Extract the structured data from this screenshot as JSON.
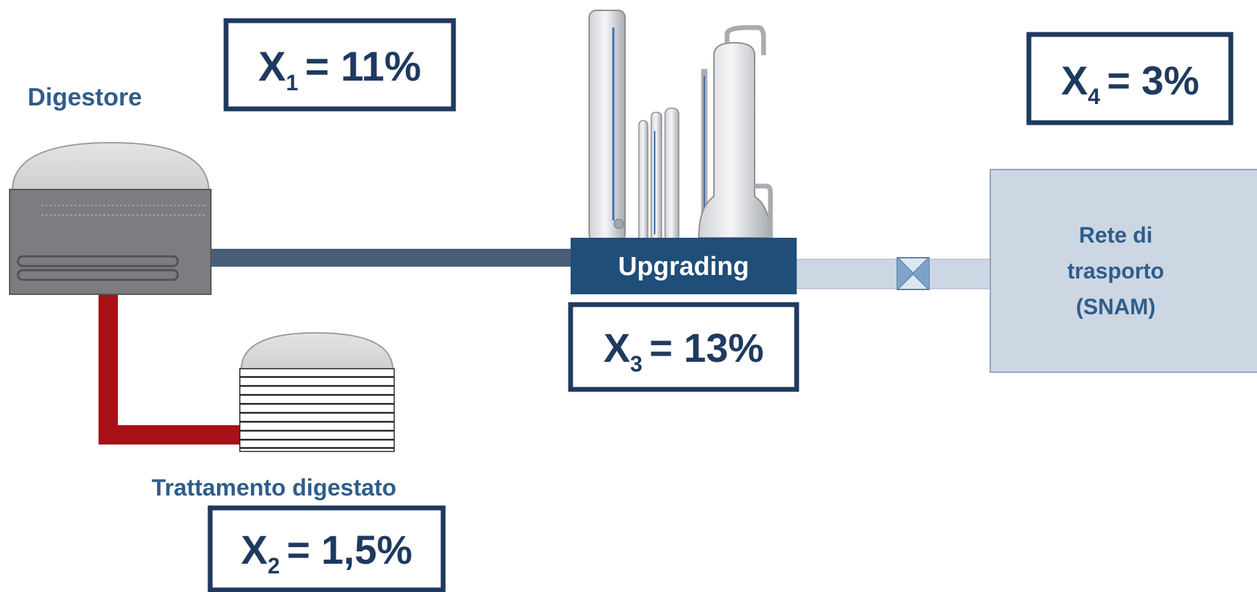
{
  "labels": {
    "digestore": "Digestore",
    "trattamento": "Trattamento digestato",
    "upgrading": "Upgrading",
    "rete_line1": "Rete di",
    "rete_line2": "trasporto",
    "rete_line3": "(SNAM)"
  },
  "indicators": {
    "x1": {
      "var": "X",
      "sub": "1",
      "value": "= 11%"
    },
    "x2": {
      "var": "X",
      "sub": "2",
      "value": "= 1,5%"
    },
    "x3": {
      "var": "X",
      "sub": "3",
      "value": "= 13%"
    },
    "x4": {
      "var": "X",
      "sub": "4",
      "value": "= 3%"
    }
  },
  "colors": {
    "navy": "#1f3a5f",
    "label_blue": "#2f5d8a",
    "pipe_dark": "#4a5d78",
    "pipe_red": "#a90f16",
    "pipe_light": "#cdd6e3",
    "grid_box": "#cdd6e3",
    "tank_gray": "#7b7d80",
    "dome_gray": "#d9d9d9",
    "upgrading_box": "#1f4e79"
  },
  "icons": {
    "valve": "valve-icon",
    "columns": "distillation-columns-icon",
    "digester": "digester-tank-icon",
    "storage": "digestate-storage-icon"
  }
}
